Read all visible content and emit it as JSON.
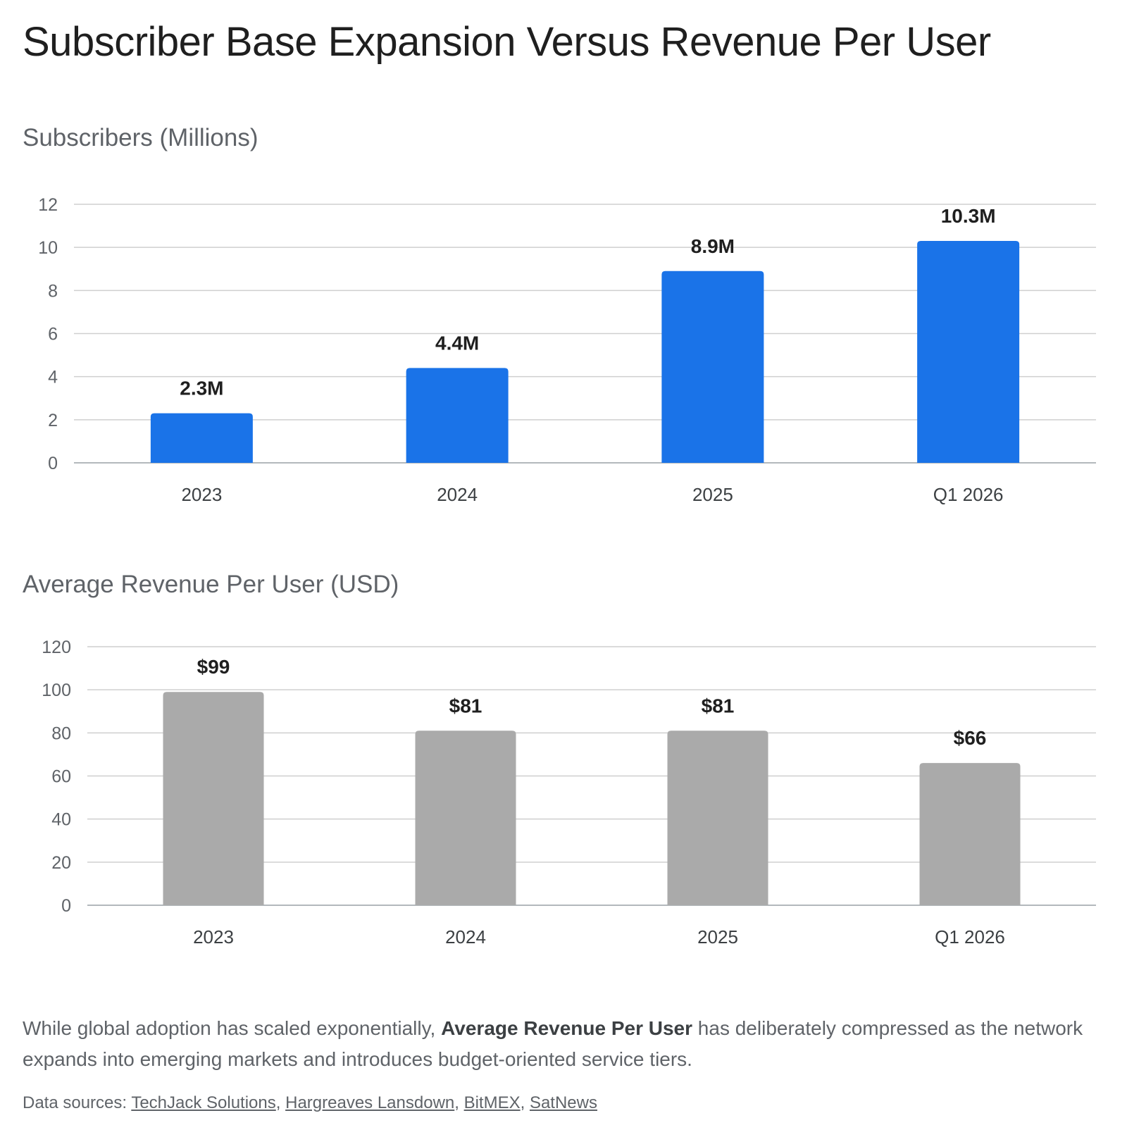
{
  "page_title": "Subscriber Base Expansion Versus Revenue Per User",
  "chart_data": [
    {
      "type": "bar",
      "title": "Subscribers (Millions)",
      "categories": [
        "2023",
        "2024",
        "2025",
        "Q1 2026"
      ],
      "values": [
        2.3,
        4.4,
        8.9,
        10.3
      ],
      "data_labels": [
        "2.3M",
        "4.4M",
        "8.9M",
        "10.3M"
      ],
      "yticks": [
        "0",
        "2",
        "4",
        "6",
        "8",
        "10",
        "12"
      ],
      "ylim": [
        0,
        12
      ],
      "grid": true,
      "bar_color": "#1a73e8"
    },
    {
      "type": "bar",
      "title": "Average Revenue Per User (USD)",
      "categories": [
        "2023",
        "2024",
        "2025",
        "Q1 2026"
      ],
      "values": [
        99,
        81,
        81,
        66
      ],
      "data_labels": [
        "$99",
        "$81",
        "$81",
        "$66"
      ],
      "yticks": [
        "0",
        "20",
        "40",
        "60",
        "80",
        "100",
        "120"
      ],
      "ylim": [
        0,
        120
      ],
      "grid": true,
      "bar_color": "#aaaaaa"
    }
  ],
  "summary": {
    "before": "While global adoption has scaled exponentially, ",
    "bold": "Average Revenue Per User",
    "after": " has deliberately compressed as the network expands into emerging markets and introduces budget-oriented service tiers."
  },
  "sources": {
    "label": "Data sources: ",
    "links": [
      "TechJack Solutions",
      "Hargreaves Lansdown",
      "BitMEX",
      "SatNews"
    ],
    "separator": ", "
  }
}
